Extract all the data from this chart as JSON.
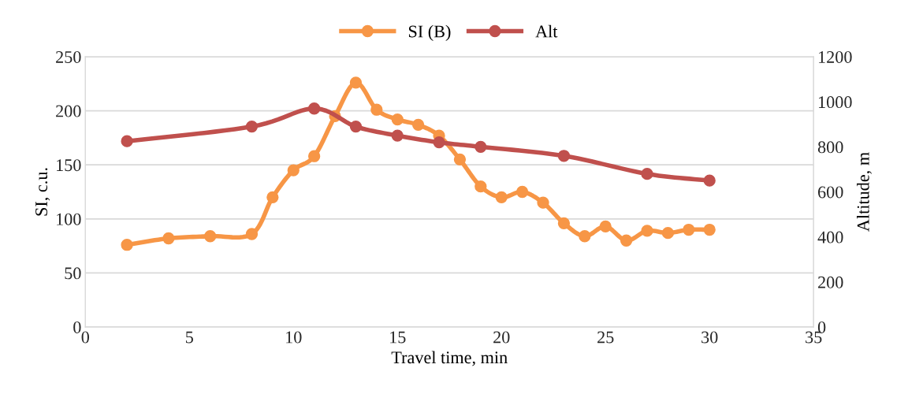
{
  "chart_data": {
    "type": "line",
    "xlabel": "Travel time, min",
    "ylabel": "SI, c.u.",
    "y2label": "Altitude, m",
    "xlim": [
      0,
      35
    ],
    "xticks": [
      0,
      5,
      10,
      15,
      20,
      25,
      30,
      35
    ],
    "ylim": [
      0,
      250
    ],
    "yticks": [
      0,
      50,
      100,
      150,
      200,
      250
    ],
    "y2lim": [
      0,
      1200
    ],
    "y2ticks": [
      0,
      200,
      400,
      600,
      800,
      1000,
      1200
    ],
    "grid": "y",
    "legend": "top",
    "marker": "circle",
    "line_style": "solid",
    "series": [
      {
        "name": "SI (B)",
        "color": "#f79646",
        "x": [
          2,
          4,
          6,
          8,
          9,
          10,
          11,
          12,
          13,
          14,
          15,
          16,
          17,
          18,
          19,
          20,
          21,
          22,
          23,
          24,
          25,
          26,
          27,
          28,
          29,
          30
        ],
        "values": [
          76,
          82,
          84,
          86,
          120,
          145,
          158,
          195,
          226,
          201,
          192,
          187,
          177,
          155,
          130,
          120,
          125,
          115,
          96,
          84,
          93,
          80,
          89,
          87,
          90,
          90
        ]
      },
      {
        "name": "Alt",
        "color": "#c0504d",
        "axis": "y2",
        "x": [
          2,
          8,
          11,
          13,
          15,
          17,
          19,
          23,
          27,
          30
        ],
        "values": [
          825,
          890,
          970,
          890,
          850,
          820,
          800,
          760,
          680,
          650
        ]
      }
    ]
  }
}
